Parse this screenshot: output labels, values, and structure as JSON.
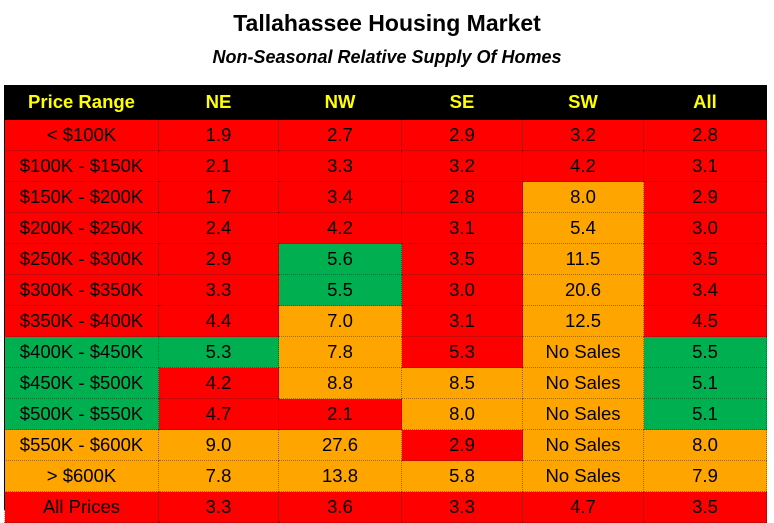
{
  "chart_data": {
    "type": "table",
    "title": "Tallahassee Housing Market",
    "subtitle": "Non-Seasonal Relative Supply Of Homes",
    "columns": [
      "Price Range",
      "NE",
      "NW",
      "SE",
      "SW",
      "All"
    ],
    "colors": {
      "red": "#ff0000",
      "orange": "#ffa500",
      "green": "#00b050",
      "header_bg": "#000000",
      "header_text": "#ffff00"
    },
    "rows": [
      {
        "label": "< $100K",
        "label_color": "red",
        "cells": [
          {
            "v": "1.9",
            "c": "red"
          },
          {
            "v": "2.7",
            "c": "red"
          },
          {
            "v": "2.9",
            "c": "red"
          },
          {
            "v": "3.2",
            "c": "red"
          },
          {
            "v": "2.8",
            "c": "red"
          }
        ]
      },
      {
        "label": "$100K - $150K",
        "label_color": "red",
        "cells": [
          {
            "v": "2.1",
            "c": "red"
          },
          {
            "v": "3.3",
            "c": "red"
          },
          {
            "v": "3.2",
            "c": "red"
          },
          {
            "v": "4.2",
            "c": "red"
          },
          {
            "v": "3.1",
            "c": "red"
          }
        ]
      },
      {
        "label": "$150K - $200K",
        "label_color": "red",
        "cells": [
          {
            "v": "1.7",
            "c": "red"
          },
          {
            "v": "3.4",
            "c": "red"
          },
          {
            "v": "2.8",
            "c": "red"
          },
          {
            "v": "8.0",
            "c": "orange"
          },
          {
            "v": "2.9",
            "c": "red"
          }
        ]
      },
      {
        "label": "$200K - $250K",
        "label_color": "red",
        "cells": [
          {
            "v": "2.4",
            "c": "red"
          },
          {
            "v": "4.2",
            "c": "red"
          },
          {
            "v": "3.1",
            "c": "red"
          },
          {
            "v": "5.4",
            "c": "orange"
          },
          {
            "v": "3.0",
            "c": "red"
          }
        ]
      },
      {
        "label": "$250K - $300K",
        "label_color": "red",
        "cells": [
          {
            "v": "2.9",
            "c": "red"
          },
          {
            "v": "5.6",
            "c": "green"
          },
          {
            "v": "3.5",
            "c": "red"
          },
          {
            "v": "11.5",
            "c": "orange"
          },
          {
            "v": "3.5",
            "c": "red"
          }
        ]
      },
      {
        "label": "$300K - $350K",
        "label_color": "red",
        "cells": [
          {
            "v": "3.3",
            "c": "red"
          },
          {
            "v": "5.5",
            "c": "green"
          },
          {
            "v": "3.0",
            "c": "red"
          },
          {
            "v": "20.6",
            "c": "orange"
          },
          {
            "v": "3.4",
            "c": "red"
          }
        ]
      },
      {
        "label": "$350K - $400K",
        "label_color": "red",
        "cells": [
          {
            "v": "4.4",
            "c": "red"
          },
          {
            "v": "7.0",
            "c": "orange"
          },
          {
            "v": "3.1",
            "c": "red"
          },
          {
            "v": "12.5",
            "c": "orange"
          },
          {
            "v": "4.5",
            "c": "red"
          }
        ]
      },
      {
        "label": "$400K - $450K",
        "label_color": "green",
        "cells": [
          {
            "v": "5.3",
            "c": "green"
          },
          {
            "v": "7.8",
            "c": "orange"
          },
          {
            "v": "5.3",
            "c": "red"
          },
          {
            "v": "No Sales",
            "c": "orange"
          },
          {
            "v": "5.5",
            "c": "green"
          }
        ]
      },
      {
        "label": "$450K - $500K",
        "label_color": "green",
        "cells": [
          {
            "v": "4.2",
            "c": "red"
          },
          {
            "v": "8.8",
            "c": "orange"
          },
          {
            "v": "8.5",
            "c": "orange"
          },
          {
            "v": "No Sales",
            "c": "orange"
          },
          {
            "v": "5.1",
            "c": "green"
          }
        ]
      },
      {
        "label": "$500K - $550K",
        "label_color": "green",
        "cells": [
          {
            "v": "4.7",
            "c": "red"
          },
          {
            "v": "2.1",
            "c": "red"
          },
          {
            "v": "8.0",
            "c": "orange"
          },
          {
            "v": "No Sales",
            "c": "orange"
          },
          {
            "v": "5.1",
            "c": "green"
          }
        ]
      },
      {
        "label": "$550K - $600K",
        "label_color": "orange",
        "cells": [
          {
            "v": "9.0",
            "c": "orange"
          },
          {
            "v": "27.6",
            "c": "orange"
          },
          {
            "v": "2.9",
            "c": "red"
          },
          {
            "v": "No Sales",
            "c": "orange"
          },
          {
            "v": "8.0",
            "c": "orange"
          }
        ]
      },
      {
        "label": "> $600K",
        "label_color": "orange",
        "cells": [
          {
            "v": "7.8",
            "c": "orange"
          },
          {
            "v": "13.8",
            "c": "orange"
          },
          {
            "v": "5.8",
            "c": "orange"
          },
          {
            "v": "No Sales",
            "c": "orange"
          },
          {
            "v": "7.9",
            "c": "orange"
          }
        ]
      },
      {
        "label": "All Prices",
        "label_color": "red",
        "cells": [
          {
            "v": "3.3",
            "c": "red"
          },
          {
            "v": "3.6",
            "c": "red"
          },
          {
            "v": "3.3",
            "c": "red"
          },
          {
            "v": "4.7",
            "c": "red"
          },
          {
            "v": "3.5",
            "c": "red"
          }
        ]
      }
    ]
  }
}
